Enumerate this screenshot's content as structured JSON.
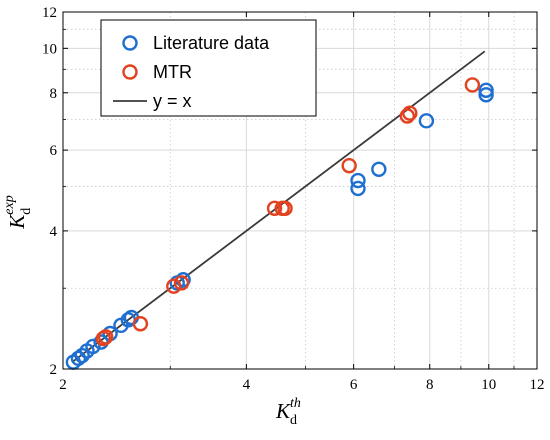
{
  "chart_data": {
    "type": "scatter",
    "title": "",
    "xlabel": {
      "main": "K",
      "sub": "d",
      "sup": "th"
    },
    "ylabel": {
      "main": "K",
      "sub": "d",
      "sup": "exp"
    },
    "xscale": "log",
    "yscale": "log",
    "xlim": [
      2,
      12
    ],
    "ylim": [
      2,
      12
    ],
    "xticks": [
      2,
      4,
      6,
      8,
      10,
      12
    ],
    "yticks": [
      2,
      4,
      6,
      8,
      10,
      12
    ],
    "x_minor": [
      3,
      5,
      7,
      9,
      11
    ],
    "y_minor": [
      3,
      5,
      7,
      9,
      11
    ],
    "grid": true,
    "legend_position": "top-left",
    "series": [
      {
        "name": "Literature data",
        "color": "#1f6fd1",
        "marker": "open-circle",
        "points": [
          [
            2.08,
            2.07
          ],
          [
            2.12,
            2.11
          ],
          [
            2.15,
            2.14
          ],
          [
            2.19,
            2.19
          ],
          [
            2.24,
            2.24
          ],
          [
            2.31,
            2.29
          ],
          [
            2.39,
            2.39
          ],
          [
            2.49,
            2.49
          ],
          [
            2.56,
            2.56
          ],
          [
            2.59,
            2.59
          ],
          [
            3.08,
            3.08
          ],
          [
            3.15,
            3.13
          ],
          [
            6.1,
            4.95
          ],
          [
            6.1,
            5.15
          ],
          [
            6.6,
            5.45
          ],
          [
            7.9,
            6.95
          ],
          [
            9.9,
            7.92
          ],
          [
            9.9,
            8.1
          ]
        ]
      },
      {
        "name": "MTR",
        "color": "#e2421f",
        "marker": "open-circle",
        "points": [
          [
            2.33,
            2.33
          ],
          [
            2.35,
            2.35
          ],
          [
            2.68,
            2.51
          ],
          [
            3.04,
            3.03
          ],
          [
            3.13,
            3.08
          ],
          [
            4.45,
            4.48
          ],
          [
            4.58,
            4.48
          ],
          [
            4.63,
            4.48
          ],
          [
            5.9,
            5.55
          ],
          [
            7.35,
            7.12
          ],
          [
            7.42,
            7.22
          ],
          [
            9.4,
            8.32
          ]
        ]
      },
      {
        "name": "y = x",
        "color": "#3a3a3a",
        "marker": "line",
        "x": [
          2.08,
          9.85
        ],
        "y": [
          2.08,
          9.85
        ]
      }
    ]
  }
}
